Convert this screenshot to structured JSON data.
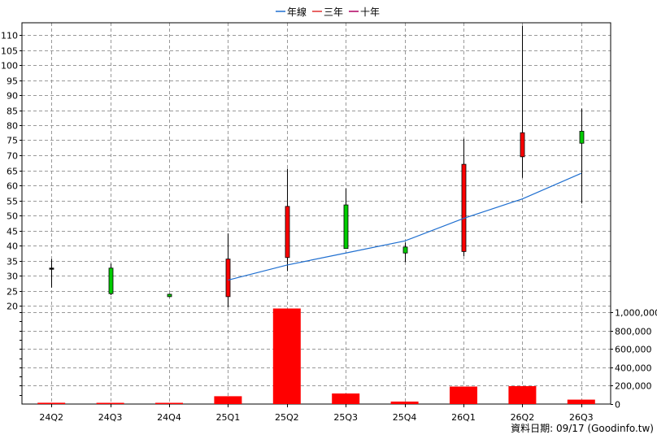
{
  "chart_data": {
    "type": "candlestick",
    "categories": [
      "24Q2",
      "24Q3",
      "24Q4",
      "25Q1",
      "25Q2",
      "25Q3",
      "25Q4",
      "26Q1",
      "26Q2",
      "26Q3"
    ],
    "legend": [
      "年線",
      "三年",
      "十年"
    ],
    "legend_placement": "top-center",
    "colors": {
      "up": "#ff0000",
      "down": "#00cc00",
      "line": "#1f6fd0",
      "volume": "#ff0000",
      "legend_line": "#1f6fd0",
      "legend_three": "#e03030",
      "legend_ten": "#b00060"
    },
    "price_axis": {
      "min": 20,
      "max": 110,
      "tick_step": 5,
      "ticks": [
        "20",
        "25",
        "30",
        "35",
        "40",
        "45",
        "50",
        "55",
        "60",
        "65",
        "70",
        "75",
        "80",
        "85",
        "90",
        "95",
        "100",
        "105",
        "110"
      ]
    },
    "volume_axis": {
      "min": 0,
      "max": 1000000,
      "ticks": [
        "0",
        "200,000",
        "400,000",
        "600,000",
        "800,000",
        "1,000,000"
      ]
    },
    "candles": [
      {
        "x": "24Q2",
        "open": 32.5,
        "close": 32.5,
        "high": 35.5,
        "low": 26
      },
      {
        "x": "24Q3",
        "open": 32.5,
        "close": 24,
        "high": 34,
        "low": 23.5
      },
      {
        "x": "24Q4",
        "open": 23.8,
        "close": 23,
        "high": 24,
        "low": 22.8
      },
      {
        "x": "25Q1",
        "open": 23,
        "close": 35.5,
        "high": 44,
        "low": 19.5
      },
      {
        "x": "25Q2",
        "open": 36,
        "close": 53,
        "high": 65.5,
        "low": 31.5
      },
      {
        "x": "25Q3",
        "open": 53.5,
        "close": 39,
        "high": 59,
        "low": 39
      },
      {
        "x": "25Q4",
        "open": 39.5,
        "close": 37.5,
        "high": 41,
        "low": 34.5
      },
      {
        "x": "26Q1",
        "open": 38,
        "close": 67,
        "high": 75.5,
        "low": 36.5
      },
      {
        "x": "26Q2",
        "open": 69.5,
        "close": 77.5,
        "high": 113,
        "low": 62.5
      },
      {
        "x": "26Q3",
        "open": 78,
        "close": 74,
        "high": 85.5,
        "low": 54
      }
    ],
    "line_series": {
      "name": "年線",
      "points": [
        {
          "x": "25Q1",
          "y": 28.5
        },
        {
          "x": "25Q2",
          "y": 33.5
        },
        {
          "x": "25Q3",
          "y": 37.5
        },
        {
          "x": "25Q4",
          "y": 41.5
        },
        {
          "x": "26Q1",
          "y": 49
        },
        {
          "x": "26Q2",
          "y": 55.5
        },
        {
          "x": "26Q3",
          "y": 64
        }
      ]
    },
    "volumes": [
      14000,
      6000,
      0,
      85000,
      1040000,
      115000,
      27000,
      190000,
      195000,
      48000
    ],
    "grid": true
  },
  "footer": "資料日期: 09/17  (Goodinfo.tw)"
}
